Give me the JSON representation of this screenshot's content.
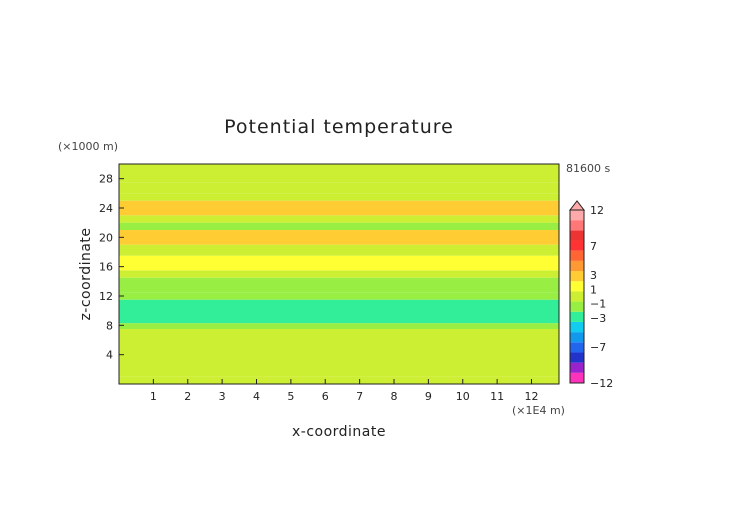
{
  "chart_data": {
    "type": "heatmap",
    "title": "Potential temperature",
    "xlabel": "x-coordinate",
    "ylabel": "z-coordinate",
    "x_unit": "(×1E4 m)",
    "y_unit": "(×1000 m)",
    "time_label": "81600 s",
    "xlim": [
      0,
      12.8
    ],
    "ylim": [
      0,
      30
    ],
    "x_ticks": [
      1,
      2,
      3,
      4,
      5,
      6,
      7,
      8,
      9,
      10,
      11,
      12
    ],
    "y_ticks": [
      4,
      8,
      12,
      16,
      20,
      24,
      28
    ],
    "colorbar": {
      "levels": [
        -12,
        -7,
        -3,
        -1,
        1,
        3,
        7,
        12
      ],
      "colors": [
        "#ff33bb",
        "#9922cc",
        "#2233cc",
        "#2266ee",
        "#1199ee",
        "#11ccee",
        "#33ee99",
        "#99ee44",
        "#ccee33",
        "#ffff33",
        "#ffcc33",
        "#ff9933",
        "#ff6633",
        "#ff3333",
        "#ee3333",
        "#ff7777",
        "#ffaaaa"
      ],
      "extend": "max"
    },
    "bands": [
      {
        "z_range": [
          0,
          1
        ],
        "value": 0.5
      },
      {
        "z_range": [
          1,
          7.5
        ],
        "value": -0.5
      },
      {
        "z_range": [
          7.5,
          8.3
        ],
        "value": -1.5
      },
      {
        "z_range": [
          8.3,
          11.5
        ],
        "value": -2.5
      },
      {
        "z_range": [
          11.5,
          12.5
        ],
        "value": -1.5
      },
      {
        "z_range": [
          12.5,
          14.5
        ],
        "value": -1.5
      },
      {
        "z_range": [
          14.5,
          15.5
        ],
        "value": 0.5
      },
      {
        "z_range": [
          15.5,
          17.5
        ],
        "value": 1.5
      },
      {
        "z_range": [
          17.5,
          19
        ],
        "value": 0.5
      },
      {
        "z_range": [
          19,
          21
        ],
        "value": 2.5
      },
      {
        "z_range": [
          21,
          22
        ],
        "value": -1.5
      },
      {
        "z_range": [
          22,
          23
        ],
        "value": 0.5
      },
      {
        "z_range": [
          23,
          25
        ],
        "value": 2.5
      },
      {
        "z_range": [
          25,
          26
        ],
        "value": 0.5
      },
      {
        "z_range": [
          26,
          27.5
        ],
        "value": -0.5
      },
      {
        "z_range": [
          27.5,
          30
        ],
        "value": 0.5
      }
    ]
  }
}
